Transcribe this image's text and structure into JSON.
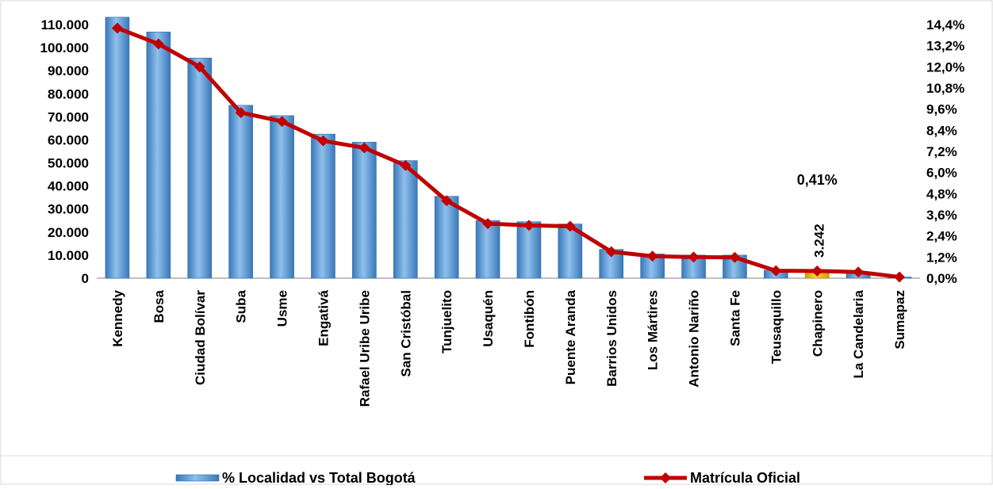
{
  "chart_data": {
    "type": "bar",
    "categories": [
      "Kennedy",
      "Bosa",
      "Ciudad Bolívar",
      "Suba",
      "Usme",
      "Engativá",
      "Rafael Uribe Uribe",
      "San Cristóbal",
      "Tunjuelito",
      "Usaquén",
      "Fontibón",
      "Puente Aranda",
      "Barrios Unidos",
      "Los Mártires",
      "Antonio Nariño",
      "Santa Fe",
      "Teusaquillo",
      "Chapinero",
      "La Candelaria",
      "Sumapaz"
    ],
    "series": [
      {
        "name": "% Localidad vs Total Bogotá",
        "kind": "bar",
        "axis": "left",
        "color": "#5B9BD5",
        "values": [
          113200,
          106800,
          95500,
          75000,
          70500,
          62500,
          59000,
          51000,
          35500,
          25000,
          24500,
          23500,
          12500,
          10500,
          10000,
          10000,
          3500,
          3242,
          2000,
          500
        ]
      },
      {
        "name": "Matrícula Oficial",
        "kind": "line",
        "axis": "right",
        "color": "#C00000",
        "values": [
          14.2,
          13.3,
          12.0,
          9.4,
          8.9,
          7.8,
          7.4,
          6.4,
          4.4,
          3.1,
          3.0,
          2.95,
          1.5,
          1.25,
          1.2,
          1.18,
          0.42,
          0.41,
          0.35,
          0.07
        ]
      }
    ],
    "highlight": {
      "index": 17,
      "color": "#F5B400",
      "value_label": "3.242",
      "percent_label": "0,41%"
    },
    "y_left": {
      "ylim": [
        0,
        110000
      ],
      "ticks": [
        0,
        10000,
        20000,
        30000,
        40000,
        50000,
        60000,
        70000,
        80000,
        90000,
        100000,
        110000
      ],
      "tick_labels": [
        "0",
        "10.000",
        "20.000",
        "30.000",
        "40.000",
        "50.000",
        "60.000",
        "70.000",
        "80.000",
        "90.000",
        "100.000",
        "110.000"
      ]
    },
    "y_right": {
      "ylim": [
        0,
        14.4
      ],
      "ticks": [
        0,
        1.2,
        2.4,
        3.6,
        4.8,
        6.0,
        7.2,
        8.4,
        9.6,
        10.8,
        12.0,
        13.2,
        14.4
      ],
      "tick_labels": [
        "0,0%",
        "1,2%",
        "2,4%",
        "3,6%",
        "4,8%",
        "6,0%",
        "7,2%",
        "8,4%",
        "9,6%",
        "10,8%",
        "12,0%",
        "13,2%",
        "14,4%"
      ]
    },
    "title": "",
    "xlabel": "",
    "ylabel": "",
    "grid": false,
    "legend": {
      "position": "bottom",
      "entries": [
        "% Localidad vs Total Bogotá",
        "Matrícula Oficial"
      ]
    }
  }
}
